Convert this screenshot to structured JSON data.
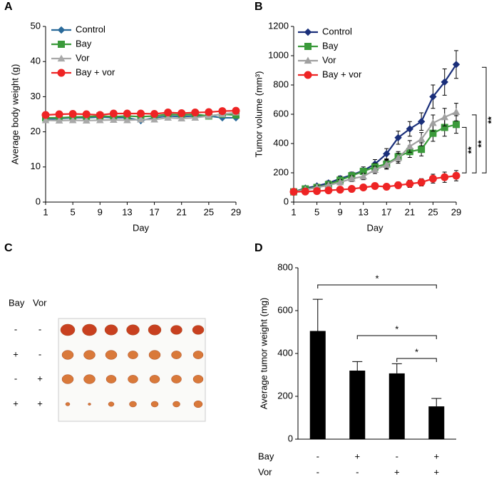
{
  "chart_data": [
    {
      "type": "line",
      "panel": "A",
      "ylabel": "Average body weight (g)",
      "xlabel": "Day",
      "x": [
        1,
        3,
        5,
        7,
        9,
        11,
        13,
        15,
        17,
        19,
        21,
        23,
        25,
        27,
        29
      ],
      "xlim": [
        1,
        29
      ],
      "xticks": [
        1,
        5,
        9,
        13,
        17,
        21,
        25,
        29
      ],
      "ylim": [
        0,
        50
      ],
      "yticks": [
        0,
        10,
        20,
        30,
        40,
        50
      ],
      "series": [
        {
          "name": "Control",
          "color": "#2a6a9a",
          "marker": "diamond",
          "values": [
            23.5,
            23.8,
            24.0,
            24.0,
            24.2,
            24.0,
            24.0,
            23.2,
            24.0,
            24.5,
            24.3,
            24.5,
            24.5,
            24.0,
            24.0
          ]
        },
        {
          "name": "Bay",
          "color": "#3a9a3a",
          "marker": "square",
          "values": [
            24.0,
            24.0,
            24.2,
            24.3,
            24.5,
            24.3,
            24.5,
            24.3,
            24.5,
            25.0,
            24.8,
            25.0,
            24.5,
            25.0,
            24.8
          ]
        },
        {
          "name": "Vor",
          "color": "#a9a9a9",
          "marker": "triangle",
          "values": [
            23.3,
            23.2,
            23.3,
            23.2,
            23.3,
            23.4,
            23.3,
            23.5,
            23.5,
            24.0,
            23.8,
            24.0,
            24.5,
            25.0,
            25.5
          ]
        },
        {
          "name": "Bay + vor",
          "color": "#ee2424",
          "marker": "circle",
          "values": [
            24.8,
            25.0,
            25.1,
            25.0,
            24.8,
            25.2,
            25.2,
            25.2,
            25.1,
            25.5,
            25.3,
            25.5,
            25.6,
            25.9,
            26.0
          ]
        }
      ]
    },
    {
      "type": "line",
      "panel": "B",
      "ylabel": "Tumor volume (mm³)",
      "xlabel": "Day",
      "x": [
        1,
        3,
        5,
        7,
        9,
        11,
        13,
        15,
        17,
        19,
        21,
        23,
        25,
        27,
        29
      ],
      "xlim": [
        1,
        29
      ],
      "xticks": [
        1,
        5,
        9,
        13,
        17,
        21,
        25,
        29
      ],
      "ylim": [
        0,
        1200
      ],
      "yticks": [
        0,
        200,
        400,
        600,
        800,
        1000,
        1200
      ],
      "significance": [
        "**",
        "**",
        "**"
      ],
      "series": [
        {
          "name": "Control",
          "color": "#1a2f7a",
          "marker": "diamond",
          "values": [
            70,
            95,
            110,
            130,
            160,
            185,
            215,
            260,
            330,
            440,
            500,
            550,
            720,
            820,
            940
          ],
          "errors": [
            10,
            10,
            12,
            15,
            18,
            20,
            25,
            30,
            35,
            45,
            50,
            60,
            80,
            90,
            95
          ]
        },
        {
          "name": "Bay",
          "color": "#3a9a3a",
          "marker": "square",
          "values": [
            70,
            90,
            100,
            120,
            150,
            180,
            210,
            240,
            260,
            310,
            345,
            360,
            470,
            510,
            530
          ],
          "errors": [
            10,
            10,
            12,
            15,
            18,
            20,
            22,
            25,
            30,
            35,
            40,
            45,
            55,
            60,
            60
          ]
        },
        {
          "name": "Vor",
          "color": "#a0a0a0",
          "marker": "triangle",
          "values": [
            70,
            85,
            100,
            115,
            135,
            160,
            175,
            220,
            255,
            300,
            380,
            430,
            540,
            580,
            615
          ],
          "errors": [
            10,
            10,
            12,
            15,
            18,
            20,
            22,
            25,
            30,
            35,
            40,
            45,
            55,
            60,
            60
          ]
        },
        {
          "name": "Bay + vor",
          "color": "#ee2424",
          "marker": "circle",
          "values": [
            70,
            72,
            75,
            80,
            85,
            90,
            100,
            110,
            105,
            115,
            125,
            135,
            160,
            170,
            180
          ],
          "errors": [
            10,
            10,
            10,
            12,
            12,
            15,
            18,
            20,
            20,
            22,
            25,
            25,
            30,
            35,
            35
          ]
        }
      ]
    },
    {
      "type": "bar",
      "panel": "D",
      "ylabel": "Average tumor weight (mg)",
      "ylim": [
        0,
        800
      ],
      "yticks": [
        0,
        200,
        400,
        600,
        800
      ],
      "color": "#000000",
      "values": [
        505,
        320,
        307,
        153
      ],
      "errors": [
        148,
        42,
        45,
        37
      ],
      "rows": [
        {
          "label": "Bay",
          "signs": [
            "-",
            "+",
            "-",
            "+"
          ]
        },
        {
          "label": "Vor",
          "signs": [
            "-",
            "-",
            "+",
            "+"
          ]
        }
      ],
      "significance": [
        "*",
        "*",
        "*"
      ]
    }
  ],
  "photo": {
    "panel": "C",
    "headers": [
      "Bay",
      "Vor"
    ],
    "rows": [
      [
        "-",
        "-"
      ],
      [
        "+",
        "-"
      ],
      [
        "-",
        "+"
      ],
      [
        "+",
        "+"
      ]
    ]
  }
}
